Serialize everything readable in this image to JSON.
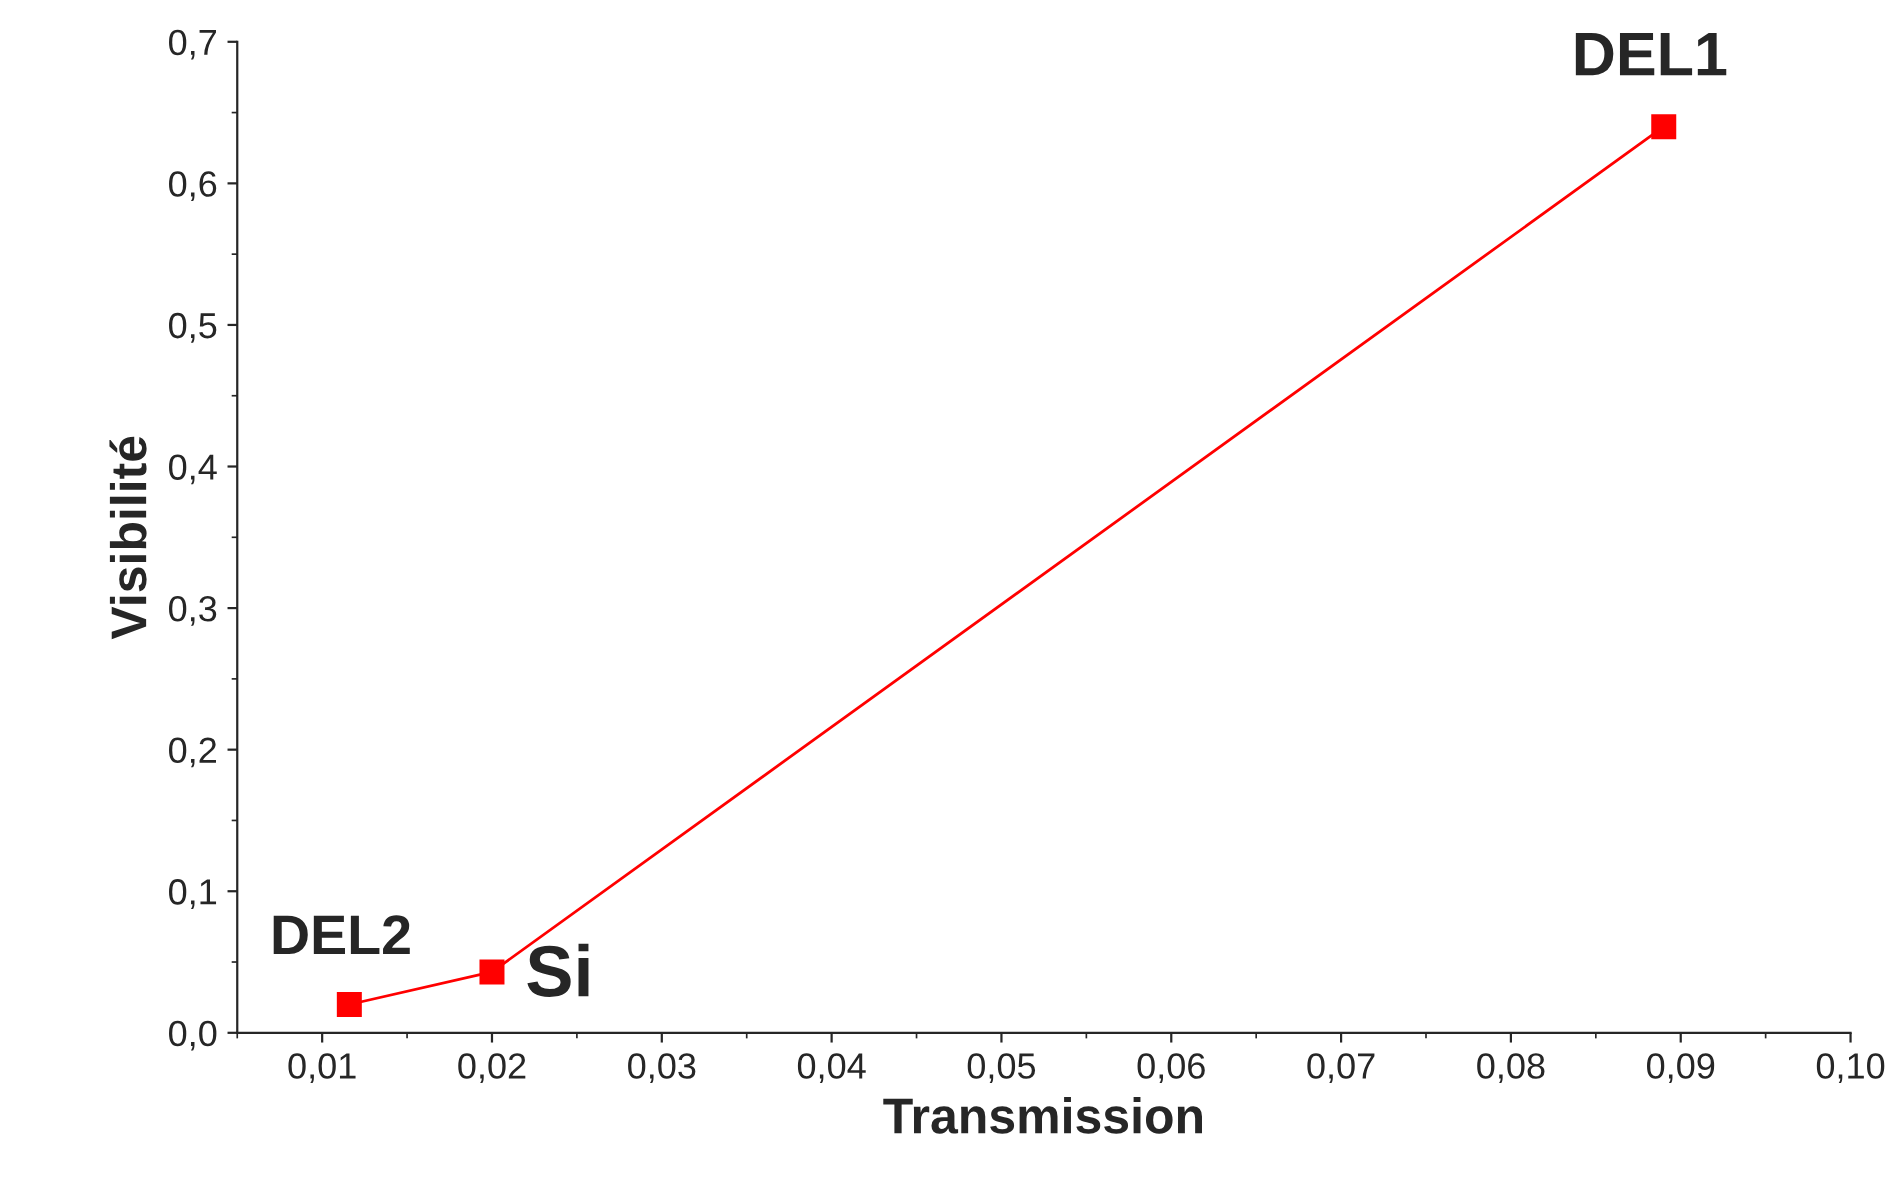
{
  "chart_data": {
    "type": "line",
    "xlabel": "Transmission",
    "ylabel": "Visibilité",
    "x": [
      0.0116,
      0.02,
      0.089
    ],
    "series": [
      {
        "color": "#ff0000",
        "values": [
          0.02,
          0.043,
          0.64
        ]
      }
    ],
    "marker": "square",
    "line_style": "solid",
    "grid": false,
    "legend": false,
    "xlim": [
      0.005,
      0.1
    ],
    "ylim": [
      0,
      0.7
    ],
    "xticks": [
      {
        "value": 0.01,
        "label": "0,01"
      },
      {
        "value": 0.02,
        "label": "0,02"
      },
      {
        "value": 0.03,
        "label": "0,03"
      },
      {
        "value": 0.04,
        "label": "0,04"
      },
      {
        "value": 0.05,
        "label": "0,05"
      },
      {
        "value": 0.06,
        "label": "0,06"
      },
      {
        "value": 0.07,
        "label": "0,07"
      },
      {
        "value": 0.08,
        "label": "0,08"
      },
      {
        "value": 0.09,
        "label": "0,09"
      },
      {
        "value": 0.1,
        "label": "0,10"
      }
    ],
    "yticks": [
      {
        "value": 0,
        "label": "0,0"
      },
      {
        "value": 0.1,
        "label": "0,1"
      },
      {
        "value": 0.2,
        "label": "0,2"
      },
      {
        "value": 0.3,
        "label": "0,3"
      },
      {
        "value": 0.4,
        "label": "0,4"
      },
      {
        "value": 0.5,
        "label": "0,5"
      },
      {
        "value": 0.6,
        "label": "0,6"
      },
      {
        "value": 0.7,
        "label": "0,7"
      }
    ],
    "annotations": [
      {
        "text": "DEL2",
        "x": 0.0116,
        "y": 0.02
      },
      {
        "text": "Si",
        "x": 0.02,
        "y": 0.043
      },
      {
        "text": "DEL1",
        "x": 0.089,
        "y": 0.64
      }
    ]
  }
}
